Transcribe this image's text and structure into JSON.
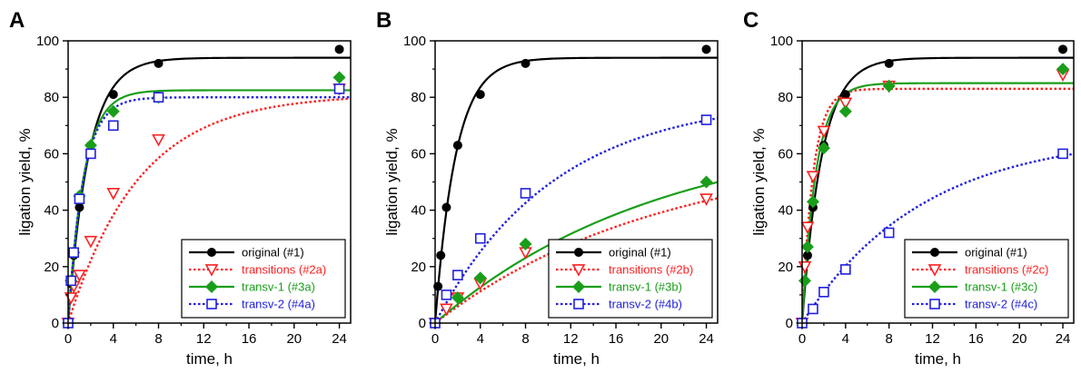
{
  "chart_data": [
    {
      "type": "scatter",
      "panel_label": "A",
      "xlabel": "time, h",
      "ylabel": "ligation yield, %",
      "xlim": [
        0,
        25
      ],
      "ylim": [
        0,
        100
      ],
      "xticks": [
        0,
        4,
        8,
        12,
        16,
        20,
        24
      ],
      "yticks": [
        0,
        20,
        40,
        60,
        80,
        100
      ],
      "legend_position": "bottom-right",
      "series": [
        {
          "name": "original (#1)",
          "color": "#000000",
          "marker": "circle",
          "line": "solid",
          "x": [
            0,
            0.25,
            0.5,
            1,
            2,
            4,
            8,
            24
          ],
          "y": [
            0,
            14,
            24,
            41,
            63,
            81,
            92,
            97
          ],
          "fit": {
            "ymax": 94,
            "k": 0.55
          }
        },
        {
          "name": "transitions (#2a)",
          "color": "#ff2020",
          "marker": "triangle-down-open",
          "line": "dotted",
          "x": [
            0,
            0.25,
            0.5,
            1,
            2,
            4,
            8,
            24
          ],
          "y": [
            0,
            9,
            13,
            17,
            29,
            46,
            65,
            83
          ],
          "fit": {
            "ymax": 81,
            "k": 0.16
          }
        },
        {
          "name": "transv-1 (#3a)",
          "color": "#1a9e1a",
          "marker": "diamond",
          "line": "solid",
          "x": [
            0,
            0.25,
            0.5,
            1,
            2,
            4,
            8,
            24
          ],
          "y": [
            0,
            15,
            25,
            45,
            63,
            75,
            80,
            87
          ],
          "fit": {
            "ymax": 82.5,
            "k": 0.72
          }
        },
        {
          "name": "transv-2 (#4a)",
          "color": "#2020e0",
          "marker": "square-open",
          "line": "dotted",
          "x": [
            0,
            0.25,
            0.5,
            1,
            2,
            4,
            8,
            24
          ],
          "y": [
            0,
            15,
            25,
            44,
            60,
            70,
            80,
            83
          ],
          "fit": {
            "ymax": 80,
            "k": 0.75
          }
        }
      ]
    },
    {
      "type": "scatter",
      "panel_label": "B",
      "xlabel": "time, h",
      "ylabel": "ligation yield, %",
      "xlim": [
        0,
        25
      ],
      "ylim": [
        0,
        100
      ],
      "xticks": [
        0,
        4,
        8,
        12,
        16,
        20,
        24
      ],
      "yticks": [
        0,
        20,
        40,
        60,
        80,
        100
      ],
      "legend_position": "bottom-right",
      "series": [
        {
          "name": "original (#1)",
          "color": "#000000",
          "marker": "circle",
          "line": "solid",
          "x": [
            0,
            0.25,
            0.5,
            1,
            2,
            4,
            8,
            24
          ],
          "y": [
            0,
            13,
            24,
            41,
            63,
            81,
            92,
            97
          ],
          "fit": {
            "ymax": 94,
            "k": 0.55
          }
        },
        {
          "name": "transitions (#2b)",
          "color": "#ff2020",
          "marker": "triangle-down-open",
          "line": "dotted",
          "x": [
            0,
            1,
            2,
            4,
            8,
            24
          ],
          "y": [
            0,
            5,
            9,
            14,
            25,
            44
          ],
          "fit": {
            "ymax": 62,
            "k": 0.05
          }
        },
        {
          "name": "transv-1 (#3b)",
          "color": "#1a9e1a",
          "marker": "diamond",
          "line": "solid",
          "x": [
            0,
            2,
            4,
            8,
            24
          ],
          "y": [
            0,
            9,
            16,
            28,
            50
          ],
          "fit": {
            "ymax": 70,
            "k": 0.05
          }
        },
        {
          "name": "transv-2 (#4b)",
          "color": "#2020e0",
          "marker": "square-open",
          "line": "dotted",
          "x": [
            0,
            1,
            2,
            4,
            8,
            24
          ],
          "y": [
            0,
            10,
            17,
            30,
            46,
            72
          ],
          "fit": {
            "ymax": 80,
            "k": 0.095
          }
        }
      ]
    },
    {
      "type": "scatter",
      "panel_label": "C",
      "xlabel": "time, h",
      "ylabel": "ligation yield, %",
      "xlim": [
        0,
        25
      ],
      "ylim": [
        0,
        100
      ],
      "xticks": [
        0,
        4,
        8,
        12,
        16,
        20,
        24
      ],
      "yticks": [
        0,
        20,
        40,
        60,
        80,
        100
      ],
      "legend_position": "bottom-right",
      "series": [
        {
          "name": "original (#1)",
          "color": "#000000",
          "marker": "circle",
          "line": "solid",
          "x": [
            0,
            0.25,
            0.5,
            1,
            2,
            4,
            8,
            24
          ],
          "y": [
            0,
            15,
            24,
            41,
            63,
            81,
            92,
            97
          ],
          "fit": {
            "ymax": 94,
            "k": 0.55
          }
        },
        {
          "name": "transitions (#2c)",
          "color": "#ff2020",
          "marker": "triangle-down-open",
          "line": "dotted",
          "x": [
            0,
            0.25,
            0.5,
            1,
            2,
            4,
            8,
            24
          ],
          "y": [
            0,
            20,
            34,
            52,
            68,
            78,
            84,
            88
          ],
          "fit": {
            "ymax": 83,
            "k": 1.0
          }
        },
        {
          "name": "transv-1 (#3c)",
          "color": "#1a9e1a",
          "marker": "diamond",
          "line": "solid",
          "x": [
            0,
            0.25,
            0.5,
            1,
            2,
            4,
            8,
            24
          ],
          "y": [
            0,
            15,
            27,
            43,
            62,
            75,
            84,
            90
          ],
          "fit": {
            "ymax": 85,
            "k": 0.78
          }
        },
        {
          "name": "transv-2 (#4c)",
          "color": "#2020e0",
          "marker": "square-open",
          "line": "dotted",
          "x": [
            0,
            1,
            2,
            4,
            8,
            24
          ],
          "y": [
            0,
            5,
            11,
            19,
            32,
            60
          ],
          "fit": {
            "ymax": 67,
            "k": 0.09
          }
        }
      ]
    }
  ]
}
